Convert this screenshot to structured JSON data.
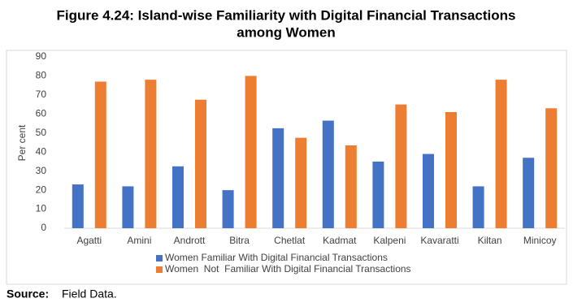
{
  "chart_data": {
    "type": "bar",
    "title": [
      "Figure 4.24: Island-wise Familiarity with Digital Financial Transactions",
      "among Women"
    ],
    "y_label": "Per cent",
    "categories": [
      "Agatti",
      "Amini",
      "Andrott",
      "Bitra",
      "Chetlat",
      "Kadmat",
      "Kalpeni",
      "Kavaratti",
      "Kiltan",
      "Minicoy"
    ],
    "series": [
      {
        "name": "Women Familiar With Digital Financial Transactions",
        "color": "#4472c4",
        "values": [
          23,
          22,
          32.5,
          20,
          52.5,
          56.5,
          35,
          39,
          22,
          37
        ]
      },
      {
        "name": "Women  Not  Familiar With Digital Financial Transactions",
        "color": "#ed7d31",
        "values": [
          77,
          78,
          67.5,
          80,
          47.5,
          43.5,
          65,
          61,
          78,
          63
        ]
      }
    ],
    "ylim": [
      0,
      90
    ],
    "yticks": [
      0,
      10,
      20,
      30,
      40,
      50,
      60,
      70,
      80,
      90
    ],
    "grid": false,
    "source": {
      "label": "Source:",
      "text": "Field Data."
    }
  }
}
